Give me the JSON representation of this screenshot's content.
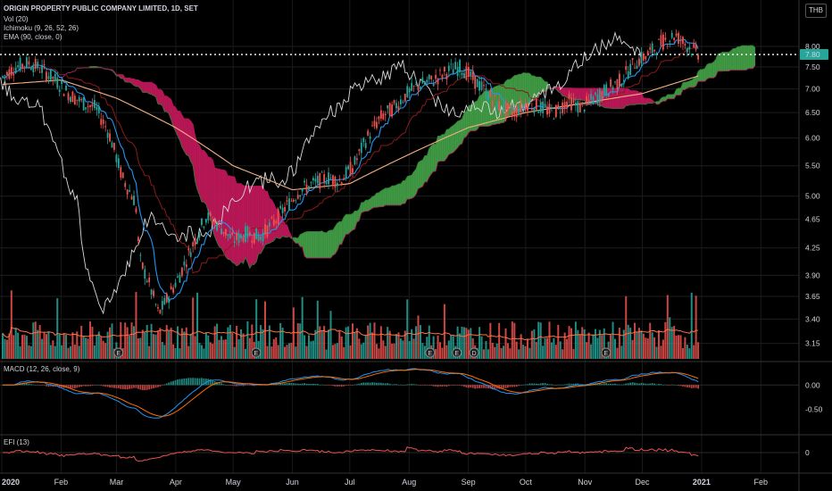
{
  "chart_title": "ORIGIN PROPERTY PUBLIC COMPANY LIMITED, 1D, SET",
  "currency": "THB",
  "indicators": {
    "vol": "Vol (20)",
    "ichimoku": "Ichimoku (9, 26, 52, 26)",
    "ema": "EMA (90, close, 0)",
    "macd": "MACD (12, 26, close, 9)",
    "efi": "EFI (13)"
  },
  "colors": {
    "up": "#26a69a",
    "down": "#ef5350",
    "cloud_up": "#43a047",
    "cloud_down": "#c2185b",
    "conversion": "#2196f3",
    "base": "#8b1a1a",
    "lagging": "#d8d8d8",
    "ema": "#f4b183",
    "macd": "#2196f3",
    "signal": "#ff6d00",
    "efi": "#ef5350",
    "last_price": "#26a69a"
  },
  "last_price_label": "7.80",
  "price_axis_ticks": [
    "8.00",
    "7.50",
    "7.00",
    "6.50",
    "6.00",
    "5.50",
    "5.00",
    "4.65",
    "4.25",
    "3.90",
    "3.65",
    "3.40",
    "3.15"
  ],
  "macd_axis_ticks": [
    "0.00",
    "-0.50"
  ],
  "efi_axis_ticks": [
    "0"
  ],
  "time_axis_labels": [
    {
      "label": "2020",
      "bold": true
    },
    {
      "label": "Feb",
      "bold": false
    },
    {
      "label": "Mar",
      "bold": false
    },
    {
      "label": "Apr",
      "bold": false
    },
    {
      "label": "May",
      "bold": false
    },
    {
      "label": "Jun",
      "bold": false
    },
    {
      "label": "Jul",
      "bold": false
    },
    {
      "label": "Aug",
      "bold": false
    },
    {
      "label": "Sep",
      "bold": false
    },
    {
      "label": "Oct",
      "bold": false
    },
    {
      "label": "Nov",
      "bold": false
    },
    {
      "label": "Dec",
      "bold": false
    },
    {
      "label": "2021",
      "bold": true
    },
    {
      "label": "Feb",
      "bold": false
    }
  ],
  "event_markers": [
    {
      "type": "E",
      "date": "2020-03-02"
    },
    {
      "type": "E",
      "date": "2020-05-13"
    },
    {
      "type": "E",
      "date": "2020-08-12"
    },
    {
      "type": "E",
      "date": "2020-08-26"
    },
    {
      "type": "D",
      "date": "2020-09-04"
    },
    {
      "type": "E",
      "date": "2020-11-12"
    }
  ],
  "chart_data": {
    "type": "line",
    "title": "ORIGIN PROPERTY PUBLIC COMPANY LIMITED, 1D, SET",
    "y_scale": "log",
    "ylim": [
      3.0,
      8.8
    ],
    "x_start": "2020-01-01",
    "x_end": "2021-02-20",
    "series": [
      {
        "name": "price",
        "x": [
          "2020-01-01",
          "2020-01-08",
          "2020-01-15",
          "2020-01-22",
          "2020-01-29",
          "2020-02-05",
          "2020-02-12",
          "2020-02-19",
          "2020-02-26",
          "2020-03-04",
          "2020-03-11",
          "2020-03-13",
          "2020-03-18",
          "2020-03-23",
          "2020-03-27",
          "2020-04-03",
          "2020-04-10",
          "2020-04-17",
          "2020-04-24",
          "2020-05-01",
          "2020-05-08",
          "2020-05-15",
          "2020-05-22",
          "2020-05-29",
          "2020-06-05",
          "2020-06-12",
          "2020-06-19",
          "2020-06-26",
          "2020-07-03",
          "2020-07-10",
          "2020-07-17",
          "2020-07-24",
          "2020-07-31",
          "2020-08-07",
          "2020-08-14",
          "2020-08-21",
          "2020-08-28",
          "2020-09-04",
          "2020-09-11",
          "2020-09-18",
          "2020-09-25",
          "2020-10-02",
          "2020-10-09",
          "2020-10-16",
          "2020-10-23",
          "2020-10-30",
          "2020-11-06",
          "2020-11-13",
          "2020-11-20",
          "2020-11-27",
          "2020-12-04",
          "2020-12-11",
          "2020-12-18",
          "2020-12-25",
          "2020-12-31"
        ],
        "values": [
          7.25,
          7.5,
          7.6,
          7.45,
          7.2,
          6.9,
          6.7,
          6.6,
          6.1,
          5.3,
          4.9,
          4.1,
          3.8,
          3.45,
          3.6,
          3.9,
          4.3,
          4.7,
          4.55,
          4.35,
          4.45,
          4.4,
          4.6,
          4.85,
          5.1,
          5.2,
          5.3,
          5.25,
          5.5,
          6.0,
          6.4,
          6.6,
          6.9,
          7.1,
          7.2,
          7.4,
          7.5,
          7.2,
          6.9,
          6.6,
          6.5,
          6.7,
          6.6,
          6.5,
          6.75,
          6.6,
          6.8,
          7.0,
          7.2,
          7.6,
          7.8,
          8.1,
          8.3,
          8.0,
          7.8
        ]
      },
      {
        "name": "EMA 90",
        "x": [
          "2020-01-01",
          "2020-02-01",
          "2020-03-01",
          "2020-04-01",
          "2020-05-01",
          "2020-06-01",
          "2020-07-01",
          "2020-08-01",
          "2020-09-01",
          "2020-10-01",
          "2020-11-01",
          "2020-12-01",
          "2020-12-31"
        ],
        "values": [
          7.1,
          7.2,
          6.8,
          6.2,
          5.5,
          5.1,
          5.2,
          5.7,
          6.2,
          6.5,
          6.7,
          6.9,
          7.3
        ]
      }
    ],
    "macd": {
      "ylim": [
        -0.9,
        0.3
      ],
      "ticks": [
        0.0,
        -0.5
      ]
    },
    "efi": {
      "ticks": [
        0
      ]
    }
  }
}
